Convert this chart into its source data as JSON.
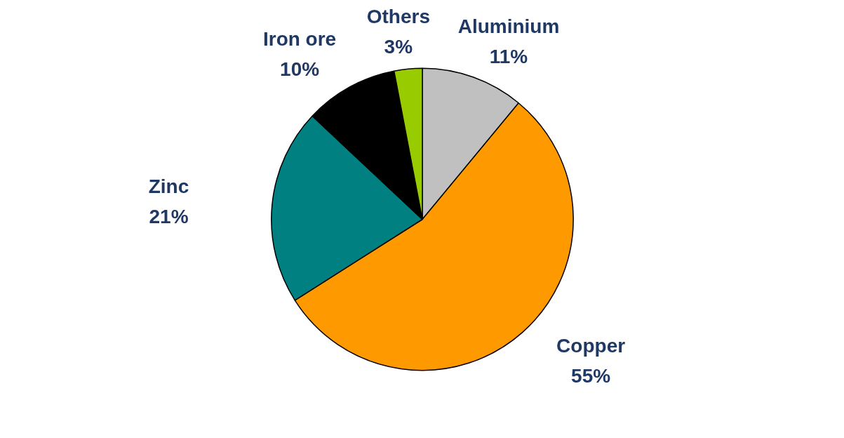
{
  "chart_data": {
    "type": "pie",
    "categories": [
      "Aluminium",
      "Copper",
      "Zinc",
      "Iron ore",
      "Others"
    ],
    "values": [
      11,
      55,
      21,
      10,
      3
    ],
    "colors": [
      "#c0c0c0",
      "#ff9900",
      "#008080",
      "#000000",
      "#99cc00"
    ],
    "value_labels": [
      "11%",
      "55%",
      "21%",
      "10%",
      "3%"
    ]
  }
}
